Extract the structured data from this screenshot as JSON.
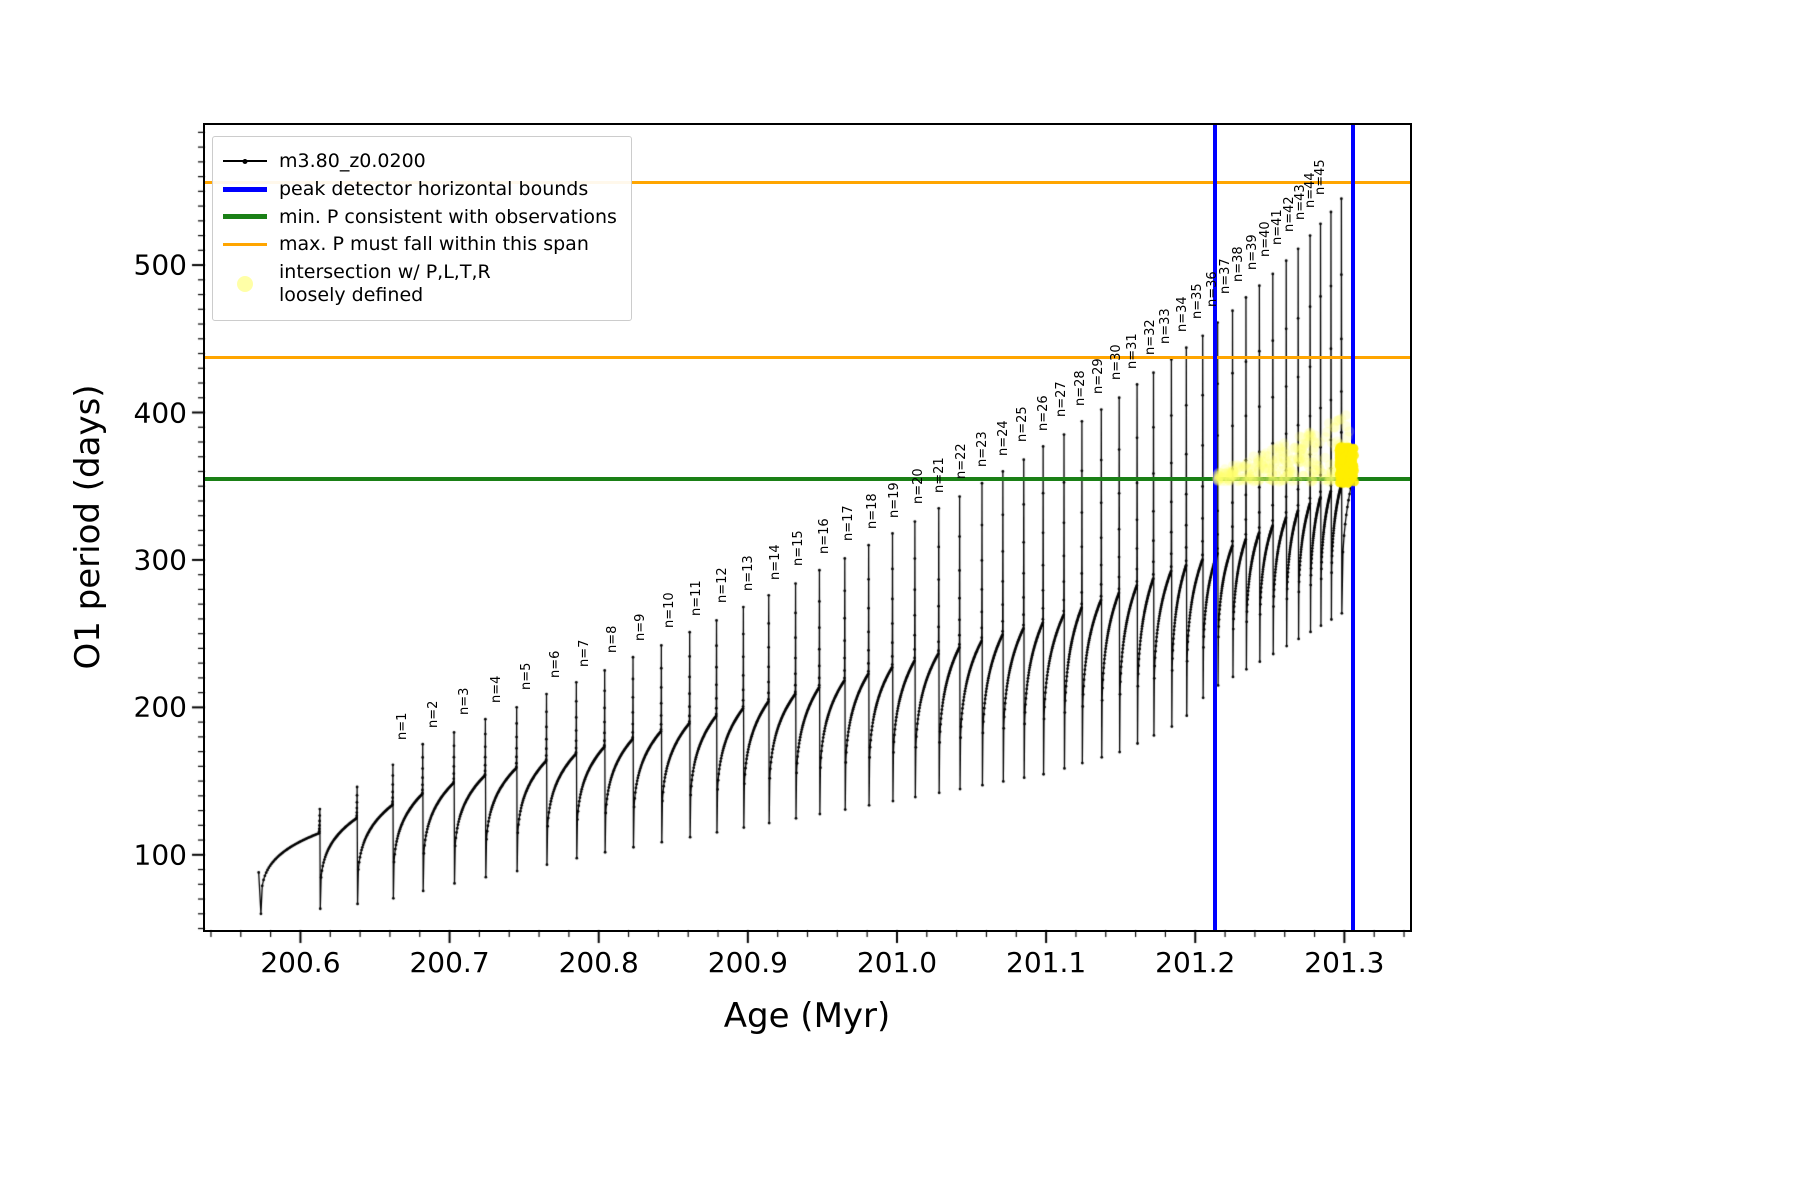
{
  "figure": {
    "xlabel": "Age (Myr)",
    "ylabel": "O1 period (days)"
  },
  "legend": {
    "items": [
      {
        "label": "m3.80_z0.0200",
        "color": "#000000"
      },
      {
        "label": "peak detector horizontal bounds",
        "color": "#0000ff"
      },
      {
        "label": "min. P consistent with observations",
        "color": "#1a8016"
      },
      {
        "label": "max. P must fall within this span",
        "color": "#ffa500"
      },
      {
        "label": "intersection w/ P,L,T,R\nloosely defined",
        "color": "#ffff50"
      }
    ]
  },
  "chart_data": {
    "type": "line",
    "title": "",
    "xlabel": "Age (Myr)",
    "ylabel": "O1 period (days)",
    "xlim": [
      200.536,
      201.344
    ],
    "ylim": [
      49,
      595
    ],
    "x_ticks": [
      200.6,
      200.7,
      200.8,
      200.9,
      201.0,
      201.1,
      201.2,
      201.3
    ],
    "x_tick_labels": [
      "200.6",
      "200.7",
      "200.8",
      "200.9",
      "201.0",
      "201.1",
      "201.2",
      "201.3"
    ],
    "y_ticks": [
      100,
      200,
      300,
      400,
      500
    ],
    "y_tick_labels": [
      "100",
      "200",
      "300",
      "400",
      "500"
    ],
    "x_minor_step": 0.02,
    "y_minor_step": 10,
    "grid": false,
    "legend_position": "upper left",
    "series_name": "m3.80_z0.0200",
    "series_color": "#000000",
    "series_start": {
      "x": 200.572,
      "y": 88
    },
    "reference_lines": {
      "peak_detector_bounds_x": [
        201.213,
        201.306
      ],
      "peak_detector_color": "#0000ff",
      "min_period_y": 355,
      "min_period_color": "#1a8016",
      "max_period_span_y": [
        437,
        556
      ],
      "max_period_color": "#ffa500"
    },
    "envelope": {
      "x": [
        200.573,
        200.62,
        200.66,
        200.7,
        200.75,
        200.8,
        200.85,
        200.9,
        200.95,
        201.0,
        201.05,
        201.1,
        201.15,
        201.19,
        201.21,
        201.25,
        201.3
      ],
      "min": [
        60,
        64,
        70,
        80,
        90,
        101,
        110,
        119,
        128,
        137,
        146,
        155,
        170,
        190,
        212,
        235,
        265
      ],
      "plateau": [
        95,
        118,
        133,
        148,
        160,
        172,
        186,
        200,
        214,
        228,
        243,
        258,
        278,
        295,
        302,
        322,
        352
      ]
    },
    "teeth": [
      {
        "label": "",
        "x": 200.613,
        "peak": 131
      },
      {
        "label": "",
        "x": 200.638,
        "peak": 146
      },
      {
        "label": "",
        "x": 200.662,
        "peak": 161
      },
      {
        "label": "n=1",
        "x": 200.682,
        "peak": 175
      },
      {
        "label": "n=2",
        "x": 200.703,
        "peak": 183
      },
      {
        "label": "n=3",
        "x": 200.724,
        "peak": 192
      },
      {
        "label": "n=4",
        "x": 200.745,
        "peak": 200
      },
      {
        "label": "n=5",
        "x": 200.765,
        "peak": 209
      },
      {
        "label": "n=6",
        "x": 200.785,
        "peak": 217
      },
      {
        "label": "n=7",
        "x": 200.804,
        "peak": 225
      },
      {
        "label": "n=8",
        "x": 200.823,
        "peak": 234
      },
      {
        "label": "n=9",
        "x": 200.842,
        "peak": 242
      },
      {
        "label": "n=10",
        "x": 200.861,
        "peak": 251
      },
      {
        "label": "n=11",
        "x": 200.879,
        "peak": 259
      },
      {
        "label": "n=12",
        "x": 200.897,
        "peak": 268
      },
      {
        "label": "n=13",
        "x": 200.914,
        "peak": 276
      },
      {
        "label": "n=14",
        "x": 200.932,
        "peak": 284
      },
      {
        "label": "n=15",
        "x": 200.948,
        "peak": 293
      },
      {
        "label": "n=16",
        "x": 200.965,
        "peak": 301
      },
      {
        "label": "n=17",
        "x": 200.981,
        "peak": 310
      },
      {
        "label": "n=18",
        "x": 200.997,
        "peak": 318
      },
      {
        "label": "n=19",
        "x": 201.012,
        "peak": 326
      },
      {
        "label": "n=20",
        "x": 201.028,
        "peak": 335
      },
      {
        "label": "n=21",
        "x": 201.042,
        "peak": 343
      },
      {
        "label": "n=22",
        "x": 201.057,
        "peak": 352
      },
      {
        "label": "n=23",
        "x": 201.071,
        "peak": 360
      },
      {
        "label": "n=24",
        "x": 201.085,
        "peak": 368
      },
      {
        "label": "n=25",
        "x": 201.098,
        "peak": 377
      },
      {
        "label": "n=26",
        "x": 201.112,
        "peak": 385
      },
      {
        "label": "n=27",
        "x": 201.124,
        "peak": 394
      },
      {
        "label": "n=28",
        "x": 201.137,
        "peak": 402
      },
      {
        "label": "n=29",
        "x": 201.149,
        "peak": 410
      },
      {
        "label": "n=30",
        "x": 201.161,
        "peak": 419
      },
      {
        "label": "n=31",
        "x": 201.172,
        "peak": 427
      },
      {
        "label": "n=32",
        "x": 201.184,
        "peak": 436
      },
      {
        "label": "n=33",
        "x": 201.194,
        "peak": 444
      },
      {
        "label": "n=34",
        "x": 201.205,
        "peak": 452
      },
      {
        "label": "n=35",
        "x": 201.215,
        "peak": 461
      },
      {
        "label": "n=36",
        "x": 201.225,
        "peak": 469
      },
      {
        "label": "n=37",
        "x": 201.234,
        "peak": 478
      },
      {
        "label": "n=38",
        "x": 201.243,
        "peak": 486
      },
      {
        "label": "n=39",
        "x": 201.252,
        "peak": 494
      },
      {
        "label": "n=40",
        "x": 201.261,
        "peak": 503
      },
      {
        "label": "n=41",
        "x": 201.269,
        "peak": 511
      },
      {
        "label": "n=42",
        "x": 201.277,
        "peak": 520
      },
      {
        "label": "n=43",
        "x": 201.284,
        "peak": 528
      },
      {
        "label": "n=44",
        "x": 201.291,
        "peak": 536
      },
      {
        "label": "n=45",
        "x": 201.298,
        "peak": 545
      }
    ],
    "intersection_region": {
      "color": "#ffff50",
      "wedge_x": [
        201.214,
        201.305
      ],
      "wedge_y_base": 353,
      "wedge_y_top_at_right": 400,
      "dense_cluster_x": [
        201.2965,
        201.307
      ],
      "dense_cluster_y": [
        352,
        377
      ]
    }
  }
}
